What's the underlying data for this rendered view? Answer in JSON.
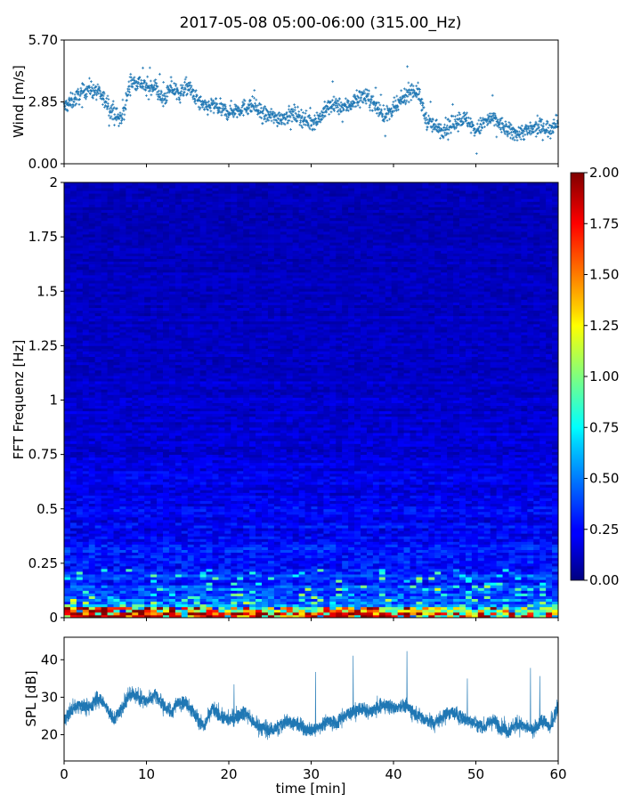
{
  "title": "2017-05-08 05:00-06:00 (315.00_Hz)",
  "chart_data": [
    {
      "id": "wind",
      "type": "scatter",
      "ylabel": "Wind [m/s]",
      "xlim": [
        0,
        60
      ],
      "ylim": [
        0,
        5.7
      ],
      "yticks": [
        "0.00",
        "2.85",
        "5.70"
      ],
      "yticks_values": [
        0,
        2.85,
        5.7
      ],
      "marker": "plus",
      "color": "#1f77b4",
      "trend": {
        "x": [
          0,
          2,
          3,
          4,
          5,
          6,
          7,
          8,
          9,
          10,
          11,
          12,
          13,
          14,
          15,
          16,
          17,
          18,
          19,
          20,
          21,
          22,
          23,
          24,
          25,
          26,
          27,
          28,
          29,
          30,
          31,
          32,
          33,
          34,
          35,
          36,
          37,
          38,
          39,
          40,
          41,
          42,
          43,
          44,
          45,
          46,
          47,
          48,
          49,
          50,
          51,
          52,
          53,
          54,
          55,
          56,
          57,
          58,
          59,
          60
        ],
        "y": [
          2.6,
          3.2,
          3.5,
          3.3,
          2.9,
          2.3,
          2.0,
          3.7,
          3.8,
          3.5,
          3.6,
          2.9,
          3.5,
          3.2,
          3.6,
          3.0,
          2.6,
          2.7,
          2.5,
          2.4,
          2.5,
          2.6,
          2.7,
          2.3,
          2.2,
          2.1,
          2.2,
          2.3,
          2.1,
          1.9,
          2.1,
          2.6,
          2.7,
          2.6,
          2.8,
          3.1,
          3.0,
          2.6,
          2.2,
          2.5,
          2.9,
          3.4,
          3.3,
          2.0,
          1.7,
          1.6,
          1.8,
          2.1,
          2.0,
          1.5,
          1.9,
          2.1,
          1.8,
          1.5,
          1.4,
          1.5,
          1.6,
          1.7,
          1.6,
          2.1
        ]
      }
    },
    {
      "id": "spectrogram",
      "type": "heatmap",
      "ylabel": "FFT Frequenz [Hz]",
      "xlim": [
        0,
        60
      ],
      "ylim": [
        0,
        2
      ],
      "yticks": [
        "0",
        "0.25",
        "0.5",
        "0.75",
        "1",
        "1.25",
        "1.5",
        "1.75",
        "2"
      ],
      "yticks_values": [
        0,
        0.25,
        0.5,
        0.75,
        1,
        1.25,
        1.5,
        1.75,
        2
      ],
      "colormap": "jet",
      "color_range": [
        0,
        2
      ],
      "colorbar_ticks": [
        "0.00",
        "0.25",
        "0.50",
        "0.75",
        "1.00",
        "1.25",
        "1.50",
        "1.75",
        "2.00"
      ],
      "colorbar_ticks_values": [
        0,
        0.25,
        0.5,
        0.75,
        1,
        1.25,
        1.5,
        1.75,
        2
      ]
    },
    {
      "id": "spl",
      "type": "line",
      "ylabel": "SPL [dB]",
      "xlabel": "time [min]",
      "xlim": [
        0,
        60
      ],
      "ylim": [
        13,
        46
      ],
      "xticks": [
        "0",
        "10",
        "20",
        "30",
        "40",
        "50",
        "60"
      ],
      "xticks_values": [
        0,
        10,
        20,
        30,
        40,
        50,
        60
      ],
      "yticks": [
        "20",
        "30",
        "40"
      ],
      "yticks_values": [
        20,
        30,
        40
      ],
      "color": "#1f77b4",
      "trend": {
        "x": [
          0,
          1,
          2,
          3,
          4,
          5,
          6,
          7,
          8,
          9,
          10,
          11,
          12,
          13,
          14,
          15,
          16,
          17,
          18,
          19,
          20,
          21,
          22,
          23,
          24,
          25,
          26,
          27,
          28,
          29,
          30,
          31,
          32,
          33,
          34,
          35,
          36,
          37,
          38,
          39,
          40,
          41,
          42,
          43,
          44,
          45,
          46,
          47,
          48,
          49,
          50,
          51,
          52,
          53,
          54,
          55,
          56,
          57,
          58,
          59,
          60
        ],
        "y": [
          24,
          27,
          28,
          27,
          30,
          28,
          24,
          27,
          31,
          30,
          29,
          31,
          28,
          26,
          29,
          28,
          25,
          22,
          27,
          25,
          24,
          25,
          26,
          23,
          22,
          21,
          22,
          24,
          23,
          22,
          21,
          22,
          24,
          23,
          25,
          26,
          27,
          26,
          27,
          28,
          27,
          28,
          27,
          25,
          24,
          23,
          25,
          26,
          25,
          24,
          23,
          22,
          24,
          22,
          21,
          23,
          22,
          21,
          24,
          22,
          28
        ]
      }
    }
  ]
}
